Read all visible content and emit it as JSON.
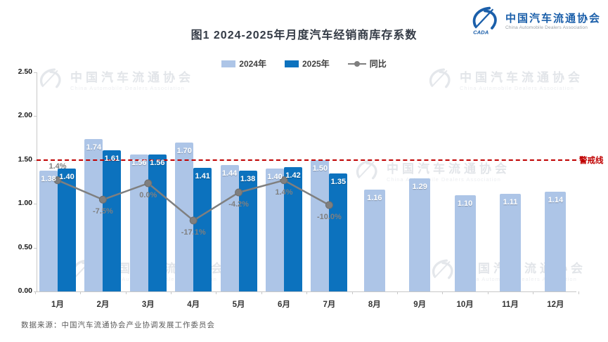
{
  "header": {
    "title": "图1  2024-2025年月度汽车经销商库存系数",
    "logo": {
      "icon": "cada-swoosh-icon",
      "mark_text": "CADA",
      "name_cn": "中国汽车流通协会",
      "name_en": "China Automobile Dealers Association",
      "brand_color": "#1B5FAA"
    }
  },
  "legend": [
    {
      "label": "2024年",
      "swatch": "rect",
      "color": "#ADC5E7"
    },
    {
      "label": "2025年",
      "swatch": "rect",
      "color": "#0C72BE"
    },
    {
      "label": "同比",
      "swatch": "line-dot",
      "color": "#7F7F7F"
    }
  ],
  "chart_data": {
    "type": "bar+line",
    "title": "图1  2024-2025年月度汽车经销商库存系数",
    "categories": [
      "1月",
      "2月",
      "3月",
      "4月",
      "5月",
      "6月",
      "7月",
      "8月",
      "9月",
      "10月",
      "11月",
      "12月"
    ],
    "series": [
      {
        "name": "2024年",
        "type": "bar",
        "color": "#ADC5E7",
        "values": [
          1.38,
          1.74,
          1.56,
          1.7,
          1.44,
          1.4,
          1.5,
          1.16,
          1.29,
          1.1,
          1.11,
          1.14
        ]
      },
      {
        "name": "2025年",
        "type": "bar",
        "color": "#0C72BE",
        "values": [
          1.4,
          1.61,
          1.56,
          1.41,
          1.38,
          1.42,
          1.35,
          null,
          null,
          null,
          null,
          null
        ]
      },
      {
        "name": "同比",
        "type": "line",
        "color": "#7F7F7F",
        "unit": "%",
        "values": [
          1.4,
          -7.5,
          0.0,
          -17.1,
          -4.2,
          1.4,
          -10.0,
          null,
          null,
          null,
          null,
          null
        ],
        "label_side": [
          "above",
          "below",
          "below",
          "below",
          "below",
          "below",
          "below"
        ]
      }
    ],
    "y_axis": {
      "min": 0,
      "max": 2.5,
      "step": 0.5,
      "tick_labels": [
        "0.00",
        "0.50",
        "1.00",
        "1.50",
        "2.00",
        "2.50"
      ]
    },
    "reference_line": {
      "value": 1.5,
      "label": "警戒线",
      "color": "#C00000",
      "style": "dashed"
    },
    "grid": false,
    "legend_position": "top-center"
  },
  "watermark": {
    "cn": "中国汽车流通协会",
    "en": "China Automobile Dealers Association"
  },
  "footer": {
    "source": "数据来源：中国汽车流通协会产业协调发展工作委员会"
  }
}
